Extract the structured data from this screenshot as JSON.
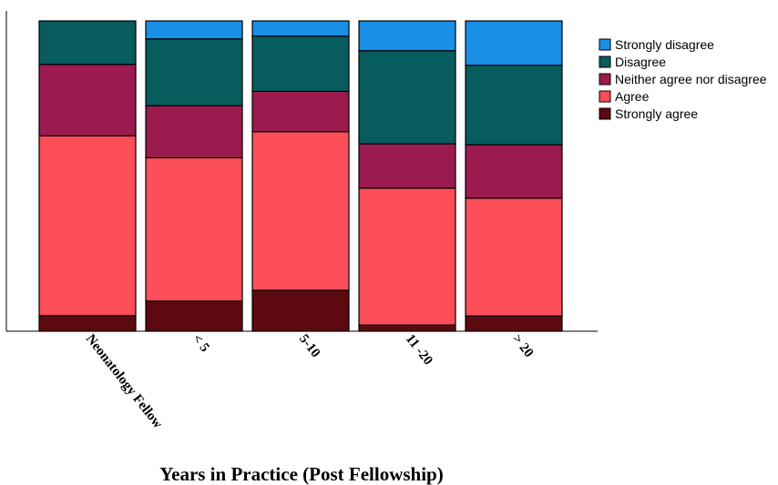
{
  "chart_data": {
    "type": "bar",
    "stacked": true,
    "normalized": true,
    "xlabel": "Years in Practice (Post Fellowship)",
    "ylabel": "",
    "ylim": [
      0,
      100
    ],
    "categories": [
      "Neonatology Fellow",
      "< 5",
      "5-10",
      "11 -20",
      "> 20"
    ],
    "series": [
      {
        "name": "Strongly agree",
        "color": "#5c0a0f",
        "values": [
          5,
          9.7,
          13.2,
          2,
          4.9
        ]
      },
      {
        "name": "Agree",
        "color": "#fb4e58",
        "values": [
          58,
          46.2,
          51.1,
          44.1,
          38
        ]
      },
      {
        "name": "Neither agree nor disagree",
        "color": "#9b1b4f",
        "values": [
          23,
          16.8,
          13,
          14.3,
          17.2
        ]
      },
      {
        "name": "Disagree",
        "color": "#075c5d",
        "values": [
          14,
          21.5,
          17.8,
          30,
          25.6
        ]
      },
      {
        "name": "Strongly disagree",
        "color": "#1a8fe6",
        "values": [
          0,
          5.8,
          4.9,
          9.6,
          14.3
        ]
      }
    ],
    "legend": {
      "position": "top-right",
      "order": [
        "Strongly disagree",
        "Disagree",
        "Neither agree nor disagree",
        "Agree",
        "Strongly agree"
      ]
    },
    "grid": false
  }
}
